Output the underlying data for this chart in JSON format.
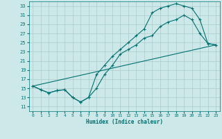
{
  "xlabel": "Humidex (Indice chaleur)",
  "bg_color": "#cce8e8",
  "grid_color": "#aacccc",
  "line_color": "#007070",
  "xlim": [
    -0.5,
    23.5
  ],
  "ylim": [
    10.0,
    34.0
  ],
  "xticks": [
    0,
    1,
    2,
    3,
    4,
    5,
    6,
    7,
    8,
    9,
    10,
    11,
    12,
    13,
    14,
    15,
    16,
    17,
    18,
    19,
    20,
    21,
    22,
    23
  ],
  "yticks": [
    11,
    13,
    15,
    17,
    19,
    21,
    23,
    25,
    27,
    29,
    31,
    33
  ],
  "line1_x": [
    0,
    1,
    2,
    3,
    4,
    5,
    6,
    7,
    8,
    9,
    10,
    11,
    12,
    13,
    14,
    15,
    16,
    17,
    18,
    19,
    20,
    21,
    22,
    23
  ],
  "line1_y": [
    15.5,
    14.7,
    14.0,
    14.5,
    14.7,
    13.0,
    12.0,
    13.0,
    18.0,
    20.0,
    22.0,
    23.5,
    25.0,
    26.5,
    28.0,
    31.5,
    32.5,
    33.0,
    33.5,
    33.0,
    32.5,
    30.0,
    24.8,
    24.5
  ],
  "line2_x": [
    0,
    1,
    2,
    3,
    4,
    5,
    6,
    7,
    8,
    9,
    10,
    11,
    12,
    13,
    14,
    15,
    16,
    17,
    18,
    19,
    20,
    21,
    22,
    23
  ],
  "line2_y": [
    15.5,
    14.7,
    14.0,
    14.5,
    14.7,
    13.0,
    12.0,
    13.0,
    15.0,
    18.0,
    20.0,
    22.5,
    23.5,
    24.5,
    26.0,
    26.5,
    28.5,
    29.5,
    30.0,
    31.0,
    30.0,
    27.0,
    24.8,
    24.5
  ],
  "line3_x": [
    0,
    23
  ],
  "line3_y": [
    15.5,
    24.5
  ]
}
